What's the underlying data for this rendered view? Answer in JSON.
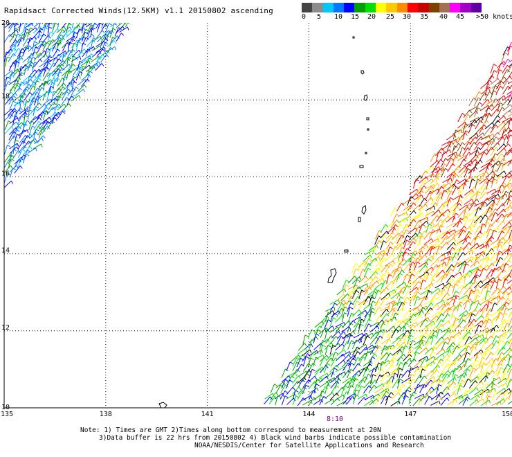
{
  "title": "Rapidsact Corrected Winds(12.5KM) v1.1 20150802 ascending",
  "legend": {
    "colors": [
      "#444444",
      "#8c8c8c",
      "#00c8ff",
      "#0078ff",
      "#0000ff",
      "#00a000",
      "#00e000",
      "#ffff00",
      "#ffc800",
      "#ff8c00",
      "#ff0000",
      "#c80000",
      "#804000",
      "#a07050",
      "#ff00ff",
      "#a000c8",
      "#6000a0"
    ],
    "labels": [
      "0",
      "5",
      "10",
      "15",
      "20",
      "25",
      "30",
      "35",
      "40",
      "45",
      ">50 knots"
    ]
  },
  "axes": {
    "lon_labels": [
      "135",
      "138",
      "141",
      "144",
      "147",
      "150"
    ],
    "lat_labels": [
      "20",
      "18",
      "16",
      "14",
      "12",
      "10"
    ],
    "lon_range": [
      135,
      150
    ],
    "lat_range": [
      10,
      20
    ]
  },
  "pass_time": "8:10",
  "notes": {
    "line1": "Note: 1) Times are GMT 2)Times along bottom correspond to measurement at 20N",
    "line2": "3)Data buffer is 22 hrs from 20150802 4) Black wind barbs indicate possible contamination",
    "line3": "NOAA/NESDIS/Center for Satellite Applications and Research"
  },
  "swaths": [
    {
      "name": "western-swath",
      "polygon_lonlat": [
        [
          135,
          20
        ],
        [
          138.8,
          20
        ],
        [
          135,
          15.7
        ]
      ],
      "dominant_speed_knots": [
        10,
        20
      ]
    },
    {
      "name": "eastern-swath",
      "polygon_lonlat": [
        [
          142.5,
          10
        ],
        [
          150,
          19.5
        ],
        [
          150,
          10
        ]
      ],
      "dominant_speed_knots": [
        15,
        45
      ]
    }
  ]
}
